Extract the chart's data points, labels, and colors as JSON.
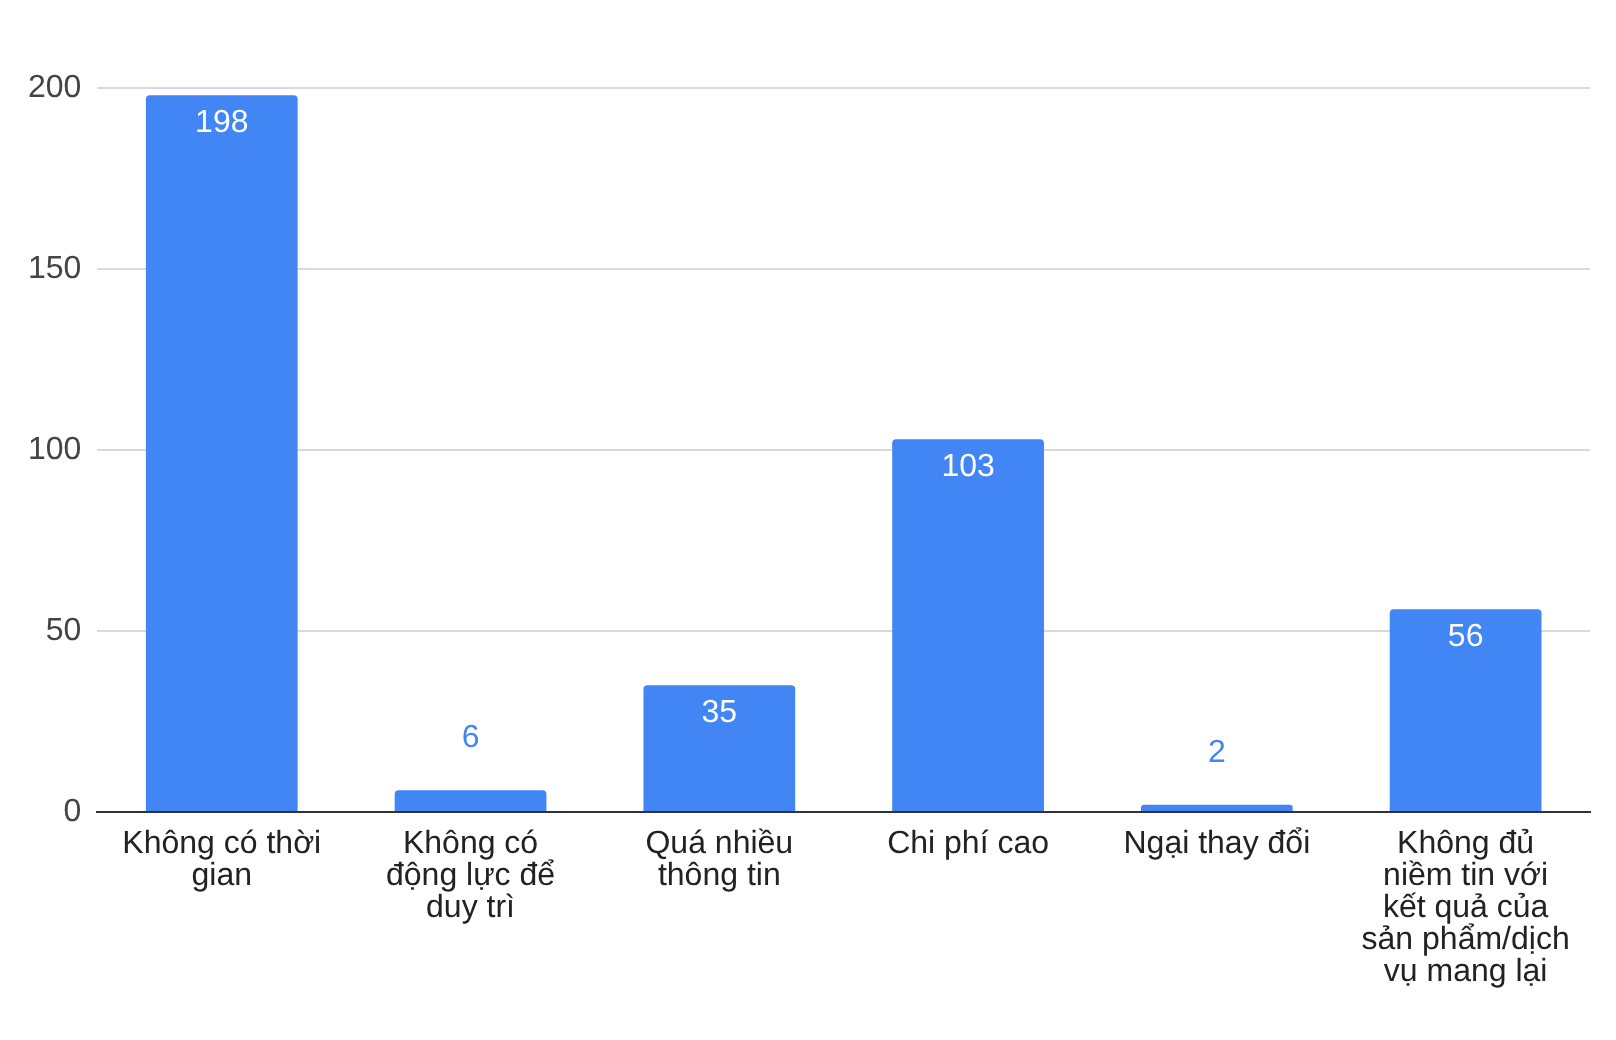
{
  "chart_data": {
    "type": "bar",
    "categories": [
      "Không có thời gian",
      "Không có động lực để duy trì",
      "Quá nhiều thông tin",
      "Chi phí cao",
      "Ngại thay đổi",
      "Không đủ niềm tin với kết quả của sản phẩm/dịch vụ mang lại"
    ],
    "values": [
      198,
      6,
      35,
      103,
      2,
      56
    ],
    "color": "#4285f4",
    "ylim": [
      0,
      200
    ],
    "yticks": [
      0,
      50,
      100,
      150,
      200
    ],
    "grid": "y",
    "data_labels": true
  }
}
